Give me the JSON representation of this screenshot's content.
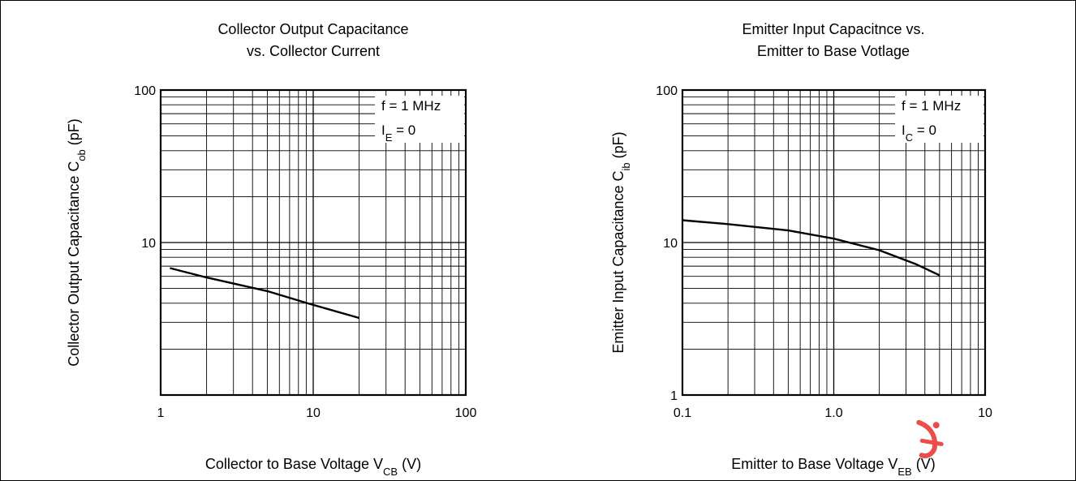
{
  "chart_data": [
    {
      "type": "line",
      "title": [
        "Collector Output Capacitance",
        "vs. Collector Current"
      ],
      "xlabel": {
        "main": "Collector to Base Voltage  V",
        "sub": "CB",
        "unit": "  (V)"
      },
      "ylabel": {
        "main": "Collector Output Capacitance  C",
        "sub": "ob",
        "unit": "  (pF)"
      },
      "x_scale": "log",
      "y_scale": "log",
      "xlim": [
        1,
        100
      ],
      "ylim": [
        1,
        100
      ],
      "xticks": [
        "1",
        "10",
        "100"
      ],
      "yticks": [
        "",
        "10",
        "100"
      ],
      "grid": true,
      "conditions": [
        {
          "main": "f = 1 MHz",
          "sub": ""
        },
        {
          "main": "I",
          "sub": "E",
          "rest": " = 0"
        }
      ],
      "series": [
        {
          "x": [
            1.15,
            2,
            5,
            10,
            20
          ],
          "y": [
            6.8,
            5.9,
            4.8,
            3.9,
            3.2
          ]
        }
      ]
    },
    {
      "type": "line",
      "title": [
        "Emitter Input Capacitnce vs.",
        "Emitter to Base Votlage"
      ],
      "xlabel": {
        "main": "Emitter to Base Voltage  V",
        "sub": "EB",
        "unit": "  (V)"
      },
      "ylabel": {
        "main": "Emitter Input Capacitance  C",
        "sub": "ib",
        "unit": "  (pF)"
      },
      "x_scale": "log",
      "y_scale": "log",
      "xlim": [
        0.1,
        10
      ],
      "ylim": [
        1,
        100
      ],
      "xticks": [
        "0.1",
        "1.0",
        "10"
      ],
      "yticks": [
        "1",
        "10",
        "100"
      ],
      "grid": true,
      "conditions": [
        {
          "main": "f = 1 MHz",
          "sub": ""
        },
        {
          "main": "I",
          "sub": "C",
          "rest": " = 0"
        }
      ],
      "series": [
        {
          "x": [
            0.1,
            0.2,
            0.5,
            1.0,
            2.0,
            3.5,
            5.0
          ],
          "y": [
            14,
            13.2,
            12,
            10.6,
            8.9,
            7.2,
            6.1
          ]
        }
      ]
    }
  ],
  "watermark": {
    "color": "#e8302a",
    "icon": "logo-watermark-icon"
  }
}
